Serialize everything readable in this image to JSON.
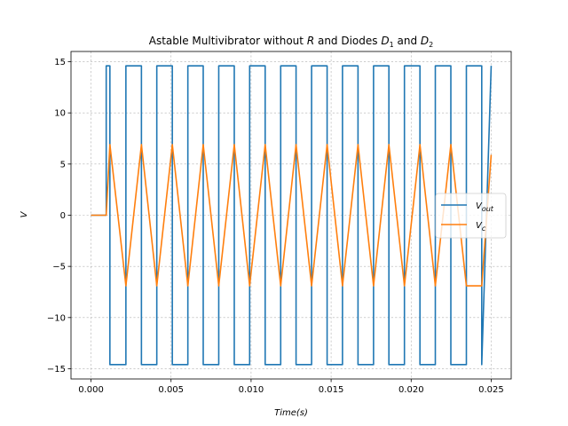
{
  "chart_data": {
    "type": "line",
    "title_parts": {
      "pre": "Astable Multivibrator without ",
      "r": "R",
      "mid": " and Diodes ",
      "d": "D",
      "one": "1",
      "and": " and ",
      "two": "2"
    },
    "xlabel": "Time(s)",
    "ylabel": "V",
    "xlim": [
      -0.00125,
      0.02625
    ],
    "ylim": [
      -16.0,
      16.0
    ],
    "xticks": [
      0.0,
      0.005,
      0.01,
      0.015,
      0.02,
      0.025
    ],
    "xtick_labels": [
      "0.000",
      "0.005",
      "0.010",
      "0.015",
      "0.020",
      "0.025"
    ],
    "yticks": [
      -15,
      -10,
      -5,
      0,
      5,
      10,
      15
    ],
    "ytick_labels": [
      "−15",
      "−10",
      "−5",
      "0",
      "5",
      "10",
      "15"
    ],
    "grid": true,
    "legend_position": "center-right",
    "series": [
      {
        "name": "V_out",
        "legend_main": "V",
        "legend_sub": "out",
        "color": "#1f77b4",
        "x": [
          0.0,
          0.00095,
          0.00095,
          0.00118,
          0.00118,
          0.00218,
          0.00218,
          0.00315,
          0.00315,
          0.00411,
          0.00411,
          0.00508,
          0.00508,
          0.00605,
          0.00605,
          0.00701,
          0.00701,
          0.00798,
          0.00798,
          0.00895,
          0.00895,
          0.00991,
          0.00991,
          0.01088,
          0.01088,
          0.01185,
          0.01185,
          0.01281,
          0.01281,
          0.01378,
          0.01378,
          0.01475,
          0.01475,
          0.01571,
          0.01571,
          0.01668,
          0.01668,
          0.01765,
          0.01765,
          0.01861,
          0.01861,
          0.01958,
          0.01958,
          0.02055,
          0.02055,
          0.02151,
          0.02151,
          0.02248,
          0.02248,
          0.02345,
          0.02345,
          0.02441,
          0.02441,
          0.025
        ],
        "y": [
          0.0,
          0.0,
          14.6,
          14.6,
          -14.6,
          -14.6,
          14.6,
          14.6,
          -14.6,
          -14.6,
          14.6,
          14.6,
          -14.6,
          -14.6,
          14.6,
          14.6,
          -14.6,
          -14.6,
          14.6,
          14.6,
          -14.6,
          -14.6,
          14.6,
          14.6,
          -14.6,
          -14.6,
          14.6,
          14.6,
          -14.6,
          -14.6,
          14.6,
          14.6,
          -14.6,
          -14.6,
          14.6,
          14.6,
          -14.6,
          -14.6,
          14.6,
          14.6,
          -14.6,
          -14.6,
          14.6,
          14.6,
          -14.6,
          -14.6,
          14.6,
          14.6,
          -14.6,
          -14.6,
          14.6,
          14.6,
          -14.6,
          14.6
        ]
      },
      {
        "name": "V_c",
        "legend_main": "V",
        "legend_sub": "c",
        "color": "#ff7f0e",
        "x": [
          0.0,
          0.00095,
          0.00118,
          0.00218,
          0.00315,
          0.00411,
          0.00508,
          0.00605,
          0.00701,
          0.00798,
          0.00895,
          0.00991,
          0.01088,
          0.01185,
          0.01281,
          0.01378,
          0.01475,
          0.01571,
          0.01668,
          0.01765,
          0.01861,
          0.01958,
          0.02055,
          0.02151,
          0.02248,
          0.02345,
          0.02441,
          0.025
        ],
        "y": [
          0.0,
          0.0,
          6.9,
          -6.9,
          6.9,
          -6.9,
          6.9,
          -6.9,
          6.9,
          -6.9,
          6.9,
          -6.9,
          6.9,
          -6.9,
          6.9,
          -6.9,
          6.9,
          -6.9,
          6.9,
          -6.9,
          6.9,
          -6.9,
          6.9,
          -6.9,
          6.9,
          -6.9,
          -6.9,
          5.9
        ]
      }
    ]
  }
}
